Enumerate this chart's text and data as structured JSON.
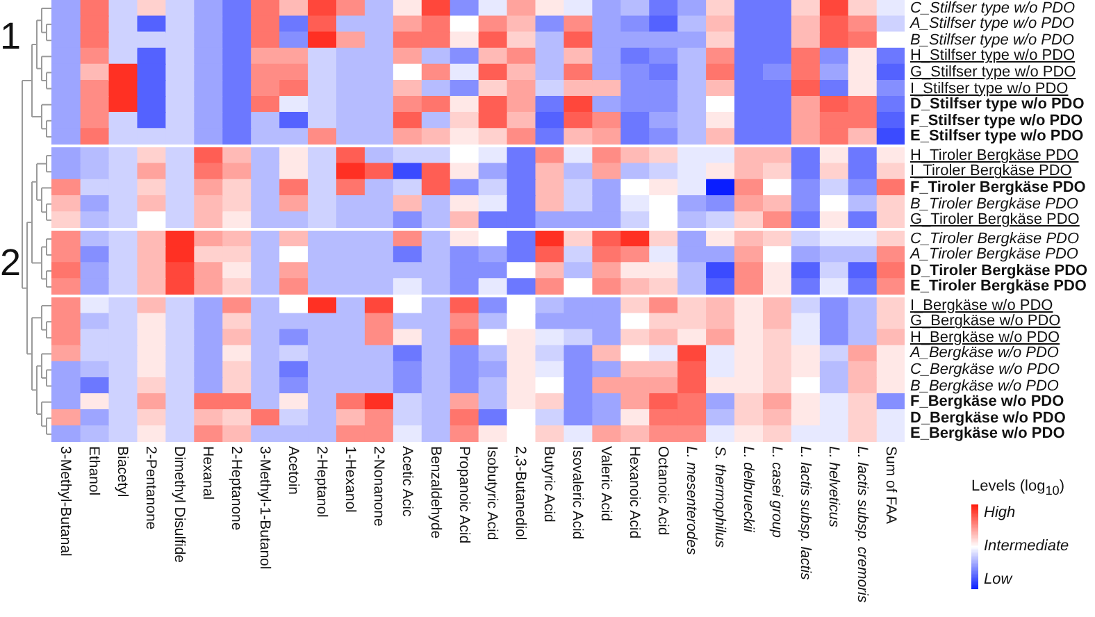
{
  "chart_data": {
    "type": "heatmap",
    "annotations": [
      "1",
      "2"
    ],
    "clim": [
      -1,
      1
    ],
    "clabel": "Levels (log$_{10}$)",
    "cticks": [
      {
        "value": 0.8,
        "label": "High"
      },
      {
        "value": 0,
        "label": "Intermediate"
      },
      {
        "value": -0.8,
        "label": "Low"
      }
    ],
    "categories": [
      "3-Methyl-Butanal",
      "Ethanol",
      "Biacetyl",
      "2-Pentanone",
      "Dimethyl Disulfide",
      "Hexanal",
      "2-Heptanone",
      "3-Methyl-1-Butanol",
      "Acetoin",
      "2-Heptanol",
      "1-Hexanol",
      "2-Nonanone",
      "Acetic Acic",
      "Benzaldehyde",
      "Propanoic Acid",
      "Isobutyric Acid",
      "2,3-Butanediol",
      "Butyric Acid",
      "Isovaleric Acid",
      "Valeric Acid",
      "Hexanoic Acid",
      "Octanoic Acid",
      "L. mesenterodes",
      "S. thermophilus",
      "L. delbrueckii",
      "L. casei group",
      "L. lactis subsp. lactis",
      "L. helveticus",
      "L. lactis subsp. cremoris",
      "Sum of FAA"
    ],
    "y_categories": [
      "C_Stilfser type w/o PDO",
      "A_Stilfser type w/o PDO",
      "B_Stilfser type w/o PDO",
      "H_Stilfser type w/o PDO",
      "G_Stilfser type w/o PDO",
      "I_Stilfser type w/o PDO",
      "D_Stilfser type w/o PDO",
      "F_Stilfser type w/o PDO",
      "E_Stilfser type w/o PDO",
      "H_Tiroler Bergkäse PDO",
      "I_Tiroler Bergkäse PDO",
      "F_Tiroler Bergkäse PDO",
      "B_Tiroler Bergkäse PDO",
      "G_Tiroler Bergkäse PDO",
      "C_Tiroler Bergkäse PDO",
      "A_Tiroler Bergkäse PDO",
      "D_Tiroler Bergkäse PDO",
      "E_Tiroler Bergkäse PDO",
      "I_Bergkäse w/o PDO",
      "G_Bergkäse w/o PDO",
      "H_Bergkäse w/o PDO",
      "A_Bergkäse w/o PDO",
      "C_Bergkäse w/o PDO",
      "B_Bergkäse w/o PDO",
      "F_Bergkäse w/o PDO",
      "D_Bergkäse w/o PDO",
      "E_Bergkäse w/o PDO"
    ],
    "cells": [
      [
        -0.4,
        0.6,
        -0.2,
        0.2,
        -0.2,
        -0.4,
        -0.6,
        0.6,
        0.3,
        0.8,
        0.5,
        -0.3,
        0.1,
        0.8,
        -0.5,
        -0.1,
        0.4,
        0.1,
        -0.1,
        -0.4,
        -0.3,
        -0.6,
        -0.4,
        0.2,
        -0.6,
        -0.6,
        0.2,
        0.8,
        0.2,
        -0.1
      ],
      [
        -0.4,
        0.6,
        -0.2,
        -0.7,
        -0.2,
        -0.4,
        -0.6,
        0.6,
        -0.6,
        0.7,
        -0.3,
        -0.3,
        0.4,
        0.6,
        0,
        0.5,
        0.3,
        -0.5,
        0.5,
        -0.4,
        -0.5,
        -0.7,
        -0.3,
        0.3,
        -0.6,
        -0.6,
        0.3,
        0.7,
        0.5,
        -0.2
      ],
      [
        -0.4,
        0.6,
        -0.2,
        -0.2,
        -0.2,
        -0.4,
        -0.6,
        0.6,
        -0.5,
        0.9,
        0.4,
        -0.3,
        0.6,
        0.6,
        0.1,
        0.7,
        0.2,
        -0.3,
        0.7,
        -0.4,
        -0.4,
        -0.4,
        -0.4,
        0.2,
        -0.6,
        -0.6,
        0.3,
        0.7,
        0.6,
        0
      ],
      [
        -0.4,
        0.5,
        -0.2,
        -0.7,
        -0.2,
        -0.4,
        -0.6,
        0.4,
        0.4,
        -0.2,
        -0.3,
        -0.3,
        0.4,
        -0.3,
        -0.5,
        0.3,
        0.5,
        -0.3,
        0.3,
        -0.4,
        -0.6,
        -0.5,
        -0.3,
        0.5,
        -0.6,
        -0.6,
        0.6,
        -0.5,
        0.1,
        -0.6
      ],
      [
        -0.4,
        0.3,
        0.9,
        -0.7,
        -0.2,
        -0.4,
        -0.6,
        0.5,
        0.5,
        -0.2,
        -0.3,
        -0.3,
        0,
        0.5,
        -0.1,
        0.7,
        0.3,
        -0.3,
        0.6,
        -0.4,
        -0.5,
        -0.6,
        -0.3,
        0.6,
        -0.6,
        -0.5,
        0.6,
        -0.4,
        0.1,
        -0.7
      ],
      [
        -0.4,
        0.5,
        0.9,
        -0.7,
        -0.2,
        -0.4,
        -0.6,
        0.5,
        0.6,
        -0.2,
        -0.3,
        -0.3,
        0.3,
        -0.3,
        -0.5,
        0.2,
        0.4,
        -0.2,
        0.3,
        0.3,
        -0.5,
        -0.5,
        -0.3,
        0.3,
        -0.6,
        -0.6,
        0.7,
        -0.6,
        0.1,
        -0.5
      ],
      [
        -0.4,
        0.5,
        0.9,
        -0.7,
        -0.2,
        -0.4,
        -0.6,
        0.6,
        -0.1,
        -0.2,
        -0.3,
        -0.3,
        0.5,
        0.6,
        0.1,
        0.7,
        0.4,
        -0.6,
        0.8,
        -0.4,
        -0.5,
        -0.5,
        -0.3,
        0,
        -0.6,
        -0.6,
        0.4,
        0.7,
        0.6,
        -0.6
      ],
      [
        -0.4,
        0.5,
        -0.2,
        -0.7,
        -0.2,
        -0.4,
        -0.6,
        -0.3,
        -0.7,
        -0.2,
        -0.3,
        -0.3,
        0.7,
        -0.3,
        0.2,
        0.7,
        0.3,
        -0.7,
        0.7,
        0.5,
        -0.6,
        -0.4,
        -0.3,
        0.1,
        -0.6,
        -0.6,
        0.4,
        0.6,
        0.6,
        -0.7
      ],
      [
        -0.4,
        0.6,
        -0.2,
        -0.2,
        -0.2,
        -0.4,
        -0.6,
        -0.3,
        -0.3,
        0.5,
        -0.3,
        -0.3,
        0.4,
        0.3,
        0.1,
        0.2,
        0.5,
        -0.6,
        0.3,
        0.4,
        -0.6,
        -0.5,
        -0.3,
        0.3,
        -0.6,
        -0.6,
        0.4,
        0.6,
        0.3,
        -0.8
      ],
      [
        -0.4,
        -0.3,
        -0.2,
        0.2,
        -0.2,
        0.7,
        0.3,
        -0.3,
        0.1,
        -0.2,
        0.7,
        -0.3,
        -0.2,
        -0.2,
        0,
        -0.1,
        -0.6,
        0.5,
        -0.1,
        0.5,
        0.3,
        0.2,
        -0.1,
        -0.1,
        0.3,
        0.3,
        -0.6,
        0.1,
        -0.6,
        0.1
      ],
      [
        -0.4,
        -0.3,
        -0.2,
        0.4,
        -0.2,
        0.6,
        0.4,
        -0.3,
        0.1,
        -0.2,
        0.9,
        0.7,
        -0.8,
        0.7,
        0.1,
        -0.4,
        -0.6,
        0.3,
        -0.3,
        0.4,
        -0.3,
        -0.2,
        -0.1,
        0.1,
        0.3,
        0.2,
        -0.6,
        0.2,
        -0.6,
        0.2
      ],
      [
        0.5,
        -0.2,
        -0.2,
        0.2,
        -0.2,
        0.4,
        0.2,
        -0.3,
        0.6,
        -0.2,
        0.6,
        -0.3,
        -0.2,
        0.7,
        -0.5,
        -0.2,
        -0.6,
        0.3,
        -0.2,
        -0.4,
        0,
        0.1,
        -0.1,
        -1,
        0.5,
        0,
        -0.5,
        -0.2,
        -0.5,
        0.6
      ],
      [
        0.3,
        -0.4,
        -0.2,
        0.3,
        -0.2,
        0.3,
        0.2,
        -0.3,
        0.4,
        -0.2,
        -0.3,
        -0.3,
        0.3,
        -0.3,
        0.1,
        -0.1,
        -0.6,
        0.3,
        -0.2,
        -0.4,
        -0.1,
        0,
        -0.4,
        -0.5,
        0.4,
        0.3,
        -0.5,
        0,
        -0.3,
        0.2
      ],
      [
        0.2,
        -0.3,
        -0.2,
        0,
        -0.2,
        0.3,
        0.1,
        -0.3,
        -0.3,
        -0.2,
        -0.3,
        -0.3,
        -0.5,
        -0.3,
        0.3,
        -0.6,
        -0.6,
        -0.4,
        -0.4,
        -0.4,
        -0.2,
        0,
        -0.3,
        -0.2,
        0.2,
        0.5,
        -0.6,
        0.1,
        -0.6,
        0.2
      ],
      [
        0.5,
        -0.3,
        -0.2,
        0.3,
        0.9,
        0.4,
        0.3,
        -0.3,
        0.3,
        -0.3,
        -0.3,
        -0.3,
        0.5,
        -0.3,
        0.1,
        0,
        -0.6,
        0.9,
        0.2,
        0.7,
        0.9,
        0.2,
        -0.4,
        0.1,
        0.3,
        0.2,
        -0.2,
        -0.1,
        -0.1,
        0.2
      ],
      [
        0.5,
        -0.5,
        -0.2,
        0.3,
        0.9,
        0.2,
        0.2,
        -0.3,
        0,
        -0.3,
        -0.3,
        -0.3,
        -0.6,
        -0.3,
        -0.5,
        -0.4,
        -0.6,
        0.7,
        -0.2,
        0.6,
        0.5,
        -0.1,
        -0.4,
        -0.4,
        0.4,
        0,
        -0.4,
        -0.3,
        -0.3,
        0.5
      ],
      [
        0.6,
        -0.4,
        -0.2,
        0.3,
        0.8,
        0.4,
        0.1,
        -0.3,
        0.4,
        -0.3,
        -0.3,
        -0.3,
        -0.3,
        -0.3,
        -0.5,
        -0.5,
        0,
        0.3,
        -0.3,
        0.4,
        0.1,
        0.1,
        -0.3,
        -0.8,
        0.5,
        0.1,
        -0.7,
        -0.2,
        -0.7,
        0.6
      ],
      [
        0.5,
        -0.4,
        -0.2,
        0.3,
        0.8,
        0.4,
        0.2,
        -0.3,
        0.5,
        -0.3,
        -0.3,
        -0.3,
        -0.1,
        -0.3,
        -0.5,
        -0.1,
        -0.6,
        0.5,
        0,
        0.5,
        0.3,
        0.2,
        -0.3,
        -0.7,
        0.5,
        0.1,
        -0.6,
        -0.1,
        -0.6,
        0.5
      ],
      [
        0.5,
        -0.1,
        -0.2,
        0.3,
        -0.2,
        -0.4,
        0.5,
        -0.3,
        0,
        0.9,
        -0.3,
        0.8,
        0,
        -0.3,
        0.7,
        -0.5,
        0,
        -0.3,
        -0.4,
        -0.4,
        0.2,
        0.5,
        0.2,
        0.3,
        0.1,
        0.3,
        -0.2,
        -0.5,
        -0.3,
        0.2
      ],
      [
        0.5,
        -0.3,
        -0.2,
        0.1,
        -0.2,
        -0.4,
        0.2,
        -0.3,
        -0.3,
        -0.3,
        -0.3,
        0.5,
        -0.3,
        -0.3,
        0.5,
        -0.3,
        0,
        -0.4,
        -0.4,
        -0.4,
        0,
        0.2,
        0.2,
        0.3,
        0.1,
        0.3,
        -0.1,
        -0.5,
        -0.3,
        0.2
      ],
      [
        0.5,
        -0.2,
        -0.2,
        0.1,
        -0.2,
        -0.4,
        0.3,
        -0.3,
        -0.5,
        -0.3,
        -0.3,
        0.5,
        0.1,
        -0.3,
        0.6,
        0,
        0.1,
        -0.1,
        -0.2,
        -0.4,
        0.2,
        0.3,
        0.1,
        0.4,
        0.1,
        0.2,
        -0.1,
        -0.5,
        -0.3,
        0.3
      ],
      [
        0.4,
        -0.2,
        -0.2,
        0.1,
        -0.2,
        -0.4,
        0.1,
        -0.3,
        -0.2,
        -0.3,
        -0.3,
        -0.3,
        -0.6,
        -0.3,
        -0.5,
        -0.3,
        0.1,
        -0.2,
        -0.5,
        0.3,
        0,
        -0.1,
        0.8,
        -0.1,
        0.1,
        0.2,
        0.1,
        -0.2,
        0.4,
        0.1
      ],
      [
        -0.4,
        -0.3,
        -0.2,
        0.1,
        -0.2,
        -0.4,
        0.2,
        -0.3,
        -0.6,
        -0.3,
        -0.3,
        -0.3,
        -0.5,
        -0.3,
        -0.5,
        -0.4,
        0.1,
        -0.1,
        -0.5,
        -0.4,
        0.3,
        0.3,
        0.7,
        -0.1,
        0.1,
        0.2,
        0.1,
        -0.3,
        0.3,
        0.1
      ],
      [
        -0.4,
        -0.6,
        -0.2,
        0.2,
        -0.2,
        -0.4,
        0.2,
        -0.3,
        -0.5,
        -0.3,
        -0.3,
        -0.3,
        -0.5,
        -0.3,
        -0.5,
        -0.3,
        0.1,
        0,
        -0.5,
        0.4,
        0.4,
        0.4,
        0.7,
        0.1,
        0.1,
        0.2,
        0,
        -0.3,
        0.3,
        0.1
      ],
      [
        -0.4,
        0.1,
        -0.2,
        0.4,
        -0.2,
        0.6,
        0.6,
        -0.3,
        0.1,
        -0.3,
        0.6,
        0.9,
        -0.2,
        -0.3,
        0.4,
        -0.3,
        0.1,
        0.2,
        -0.5,
        -0.4,
        0.4,
        0.7,
        0.6,
        -0.4,
        0.2,
        0.4,
        0.1,
        -0.1,
        0.2,
        -0.5
      ],
      [
        0.4,
        -0.4,
        -0.2,
        0.2,
        -0.2,
        0.3,
        0.2,
        0.6,
        -0.2,
        -0.3,
        0.3,
        0.5,
        -0.2,
        -0.3,
        0.6,
        -0.6,
        0,
        -0.2,
        -0.5,
        -0.4,
        0.1,
        0.6,
        0.6,
        -0.3,
        0.2,
        0.3,
        0.1,
        -0.1,
        0.2,
        -0.1
      ],
      [
        -0.4,
        -0.3,
        -0.2,
        0.1,
        -0.2,
        0.5,
        0.3,
        -0.3,
        -0.3,
        -0.3,
        0.5,
        0.5,
        -0.1,
        -0.3,
        0.5,
        0.1,
        0,
        0.2,
        -0.1,
        0.4,
        0.3,
        0.5,
        0.5,
        -0.1,
        0.1,
        0.2,
        -0.1,
        -0.1,
        0.2,
        -0.1
      ]
    ]
  }
}
